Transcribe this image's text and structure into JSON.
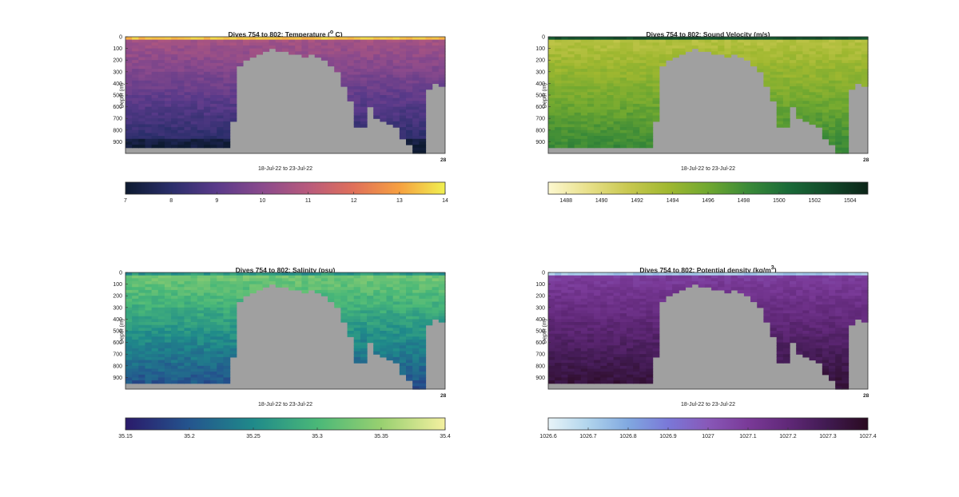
{
  "chart_data": [
    {
      "type": "heatmap",
      "title_prefix": "Dives 754 to 802: Temperature (",
      "title_sup": "o",
      "title_suffix": " C)",
      "ylabel": "Depth (m)",
      "xlabel": "18-Jul-22 to 23-Jul-22",
      "x_end_tick": "28",
      "yticks": [
        "0",
        "100",
        "200",
        "300",
        "400",
        "500",
        "600",
        "700",
        "800",
        "900"
      ],
      "ylim": [
        0,
        1000
      ],
      "variable": "temperature",
      "colorbar": {
        "ticks": [
          "7",
          "8",
          "9",
          "10",
          "11",
          "12",
          "13",
          "14"
        ],
        "range": [
          7,
          14
        ],
        "colors": [
          "#0d1a30",
          "#2a2e6a",
          "#5a3a8a",
          "#8a4a8c",
          "#b85a7c",
          "#e0705a",
          "#f6a040",
          "#f0f050"
        ]
      }
    },
    {
      "type": "heatmap",
      "title_prefix": "Dives 754 to 802: Sound Velocity (m/s)",
      "title_sup": "",
      "title_suffix": "",
      "ylabel": "Depth (m)",
      "xlabel": "18-Jul-22 to 23-Jul-22",
      "x_end_tick": "28",
      "yticks": [
        "0",
        "100",
        "200",
        "300",
        "400",
        "500",
        "600",
        "700",
        "800",
        "900"
      ],
      "ylim": [
        0,
        1000
      ],
      "variable": "sound_velocity",
      "colorbar": {
        "ticks": [
          "1488",
          "1490",
          "1492",
          "1494",
          "1496",
          "1498",
          "1500",
          "1502",
          "1504"
        ],
        "range": [
          1487,
          1505
        ],
        "colors": [
          "#fdf8d0",
          "#e8e08a",
          "#c8c850",
          "#a0b830",
          "#70a830",
          "#3a8a38",
          "#1a6a38",
          "#124a2a",
          "#0c2418"
        ]
      }
    },
    {
      "type": "heatmap",
      "title_prefix": "Dives 754 to 802: Salinity (psu)",
      "title_sup": "",
      "title_suffix": "",
      "ylabel": "Depth (m)",
      "xlabel": "18-Jul-22 to 23-Jul-22",
      "x_end_tick": "28",
      "yticks": [
        "0",
        "100",
        "200",
        "300",
        "400",
        "500",
        "600",
        "700",
        "800",
        "900"
      ],
      "ylim": [
        0,
        1000
      ],
      "variable": "salinity",
      "colorbar": {
        "ticks": [
          "35.15",
          "35.2",
          "35.25",
          "35.3",
          "35.35",
          "35.4"
        ],
        "range": [
          35.15,
          35.4
        ],
        "colors": [
          "#2a1a6a",
          "#24558e",
          "#1f8a8a",
          "#4ab878",
          "#98d070",
          "#f4f0a0"
        ]
      }
    },
    {
      "type": "heatmap",
      "title_prefix": "Dives 754 to 802: Potential density (kg/m",
      "title_sup": "3",
      "title_suffix": ")",
      "ylabel": "Depth (m)",
      "xlabel": "18-Jul-22 to 23-Jul-22",
      "x_end_tick": "28",
      "yticks": [
        "0",
        "100",
        "200",
        "300",
        "400",
        "500",
        "600",
        "700",
        "800",
        "900"
      ],
      "ylim": [
        0,
        1000
      ],
      "variable": "density",
      "colorbar": {
        "ticks": [
          "1026.6",
          "1026.7",
          "1026.8",
          "1026.9",
          "1027",
          "1027.1",
          "1027.2",
          "1027.3",
          "1027.4"
        ],
        "range": [
          1026.6,
          1027.4
        ],
        "colors": [
          "#e8f4f8",
          "#b0d4ec",
          "#80a8e0",
          "#7a78d8",
          "#8858b8",
          "#7a3a98",
          "#602878",
          "#401a50",
          "#2a0a20"
        ]
      }
    }
  ],
  "colors": {
    "nodata": "#a0a0a0"
  },
  "dive_max_depths_m": [
    960,
    950,
    960,
    950,
    960,
    955,
    960,
    950,
    960,
    950,
    955,
    960,
    950,
    960,
    955,
    950,
    720,
    240,
    210,
    170,
    150,
    120,
    110,
    115,
    130,
    140,
    150,
    170,
    160,
    180,
    200,
    240,
    300,
    430,
    560,
    770,
    780,
    610,
    710,
    730,
    745,
    770,
    880,
    915,
    990,
    990,
    440,
    400,
    420
  ]
}
